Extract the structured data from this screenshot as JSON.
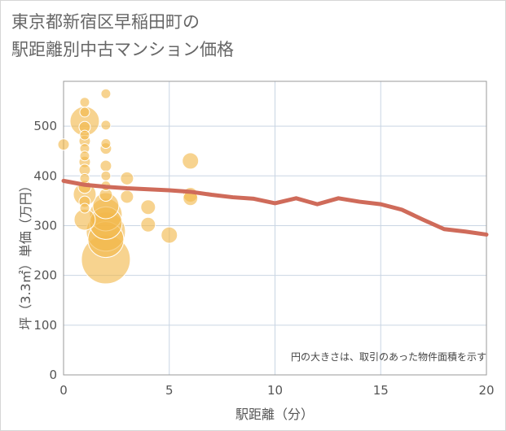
{
  "title": {
    "line1": "東京都新宿区早稲田町の",
    "line2": "駅距離別中古マンション価格"
  },
  "note": "円の大きさは、取引のあった物件面積を示す",
  "colors": {
    "bubble": "#f2b84b",
    "bubble_stroke": "#ffffff",
    "line": "#cf6b5a",
    "grid": "#c9d5e3",
    "plot_border": "#999999"
  },
  "chart_data": {
    "type": "scatter",
    "title": "東京都新宿区早稲田町の駅距離別中古マンション価格",
    "xlabel": "駅距離（分）",
    "ylabel": "坪（3.3㎡）単価（万円）",
    "xlim": [
      0,
      20
    ],
    "ylim": [
      0,
      590
    ],
    "xticks": [
      0,
      5,
      10,
      15,
      20
    ],
    "yticks": [
      0,
      100,
      200,
      300,
      400,
      500
    ],
    "grid": true,
    "bubble_size_meaning": "取引のあった物件面積",
    "bubbles": [
      {
        "x": 0,
        "y": 463,
        "r": 7
      },
      {
        "x": 1,
        "y": 548,
        "r": 6
      },
      {
        "x": 1,
        "y": 528,
        "r": 6
      },
      {
        "x": 1,
        "y": 510,
        "r": 18
      },
      {
        "x": 1,
        "y": 498,
        "r": 7
      },
      {
        "x": 1,
        "y": 482,
        "r": 6
      },
      {
        "x": 1,
        "y": 470,
        "r": 7
      },
      {
        "x": 1,
        "y": 455,
        "r": 6
      },
      {
        "x": 1,
        "y": 440,
        "r": 6
      },
      {
        "x": 1,
        "y": 428,
        "r": 7
      },
      {
        "x": 1,
        "y": 412,
        "r": 7
      },
      {
        "x": 1,
        "y": 395,
        "r": 6
      },
      {
        "x": 1,
        "y": 378,
        "r": 8
      },
      {
        "x": 1,
        "y": 363,
        "r": 14
      },
      {
        "x": 1,
        "y": 348,
        "r": 7
      },
      {
        "x": 1,
        "y": 335,
        "r": 6
      },
      {
        "x": 1,
        "y": 312,
        "r": 13
      },
      {
        "x": 2,
        "y": 565,
        "r": 6
      },
      {
        "x": 2,
        "y": 502,
        "r": 6
      },
      {
        "x": 2,
        "y": 465,
        "r": 6
      },
      {
        "x": 2,
        "y": 455,
        "r": 7
      },
      {
        "x": 2,
        "y": 420,
        "r": 7
      },
      {
        "x": 2,
        "y": 400,
        "r": 6
      },
      {
        "x": 2,
        "y": 380,
        "r": 6
      },
      {
        "x": 2,
        "y": 362,
        "r": 8
      },
      {
        "x": 2,
        "y": 340,
        "r": 16
      },
      {
        "x": 2,
        "y": 322,
        "r": 20
      },
      {
        "x": 2,
        "y": 305,
        "r": 20
      },
      {
        "x": 2,
        "y": 288,
        "r": 24
      },
      {
        "x": 2,
        "y": 272,
        "r": 22
      },
      {
        "x": 2,
        "y": 232,
        "r": 30
      },
      {
        "x": 3,
        "y": 395,
        "r": 8
      },
      {
        "x": 3,
        "y": 358,
        "r": 8
      },
      {
        "x": 4,
        "y": 337,
        "r": 9
      },
      {
        "x": 4,
        "y": 302,
        "r": 9
      },
      {
        "x": 5,
        "y": 281,
        "r": 10
      },
      {
        "x": 6,
        "y": 430,
        "r": 10
      },
      {
        "x": 6,
        "y": 362,
        "r": 9
      },
      {
        "x": 6,
        "y": 355,
        "r": 9
      }
    ],
    "series": [
      {
        "x": [
          0,
          1,
          2,
          3,
          4,
          5,
          6,
          7,
          8,
          9,
          10,
          11,
          12,
          13,
          14,
          15,
          16,
          17,
          18,
          19,
          20
        ],
        "values": [
          390,
          382,
          378,
          375,
          373,
          371,
          368,
          362,
          357,
          354,
          345,
          355,
          343,
          355,
          348,
          343,
          332,
          312,
          293,
          288,
          282
        ]
      }
    ]
  }
}
